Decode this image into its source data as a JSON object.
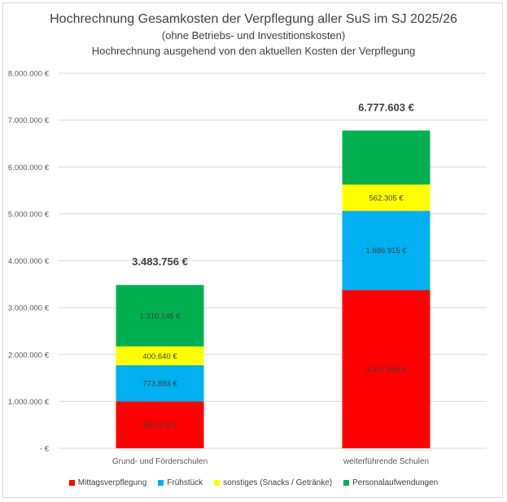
{
  "chart_data": {
    "type": "bar",
    "stacked": true,
    "title": "Hochrechnung Gesamkosten der Verpflegung aller SuS im SJ 2025/26",
    "subtitle": [
      "(ohne Betriebs- und Investitionskosten)",
      "Hochrechnung ausgehend von den aktuellen Kosten der Verpflegung"
    ],
    "categories": [
      "Grund- und Förderschulen",
      "weiterführende Schulen"
    ],
    "ylim": [
      0,
      8000000
    ],
    "yticks": [
      0,
      1000000,
      2000000,
      3000000,
      4000000,
      5000000,
      6000000,
      7000000,
      8000000
    ],
    "ytick_labels": [
      "-   €",
      "1.000.000 €",
      "2.000.000 €",
      "3.000.000 €",
      "4.000.000 €",
      "5.000.000 €",
      "6.000.000 €",
      "7.000.000 €",
      "8.000.000 €"
    ],
    "grid": true,
    "legend_position": "bottom",
    "series": [
      {
        "name": "Mittagsverpflegung",
        "color": "#ff0000",
        "values": [
          999078,
          3377836
        ],
        "labels": [
          "999.078 €",
          "3.377.836 €"
        ]
      },
      {
        "name": "Frühstück",
        "color": "#00b0f0",
        "values": [
          773893,
          1686915
        ],
        "labels": [
          "773.893 €",
          "1.686.915 €"
        ]
      },
      {
        "name": "sonstiges (Snacks / Getränke)",
        "color": "#ffff00",
        "values": [
          400640,
          562305
        ],
        "labels": [
          "400.640 €",
          "562.305 €"
        ]
      },
      {
        "name": "Personalaufwendungen",
        "color": "#00b050",
        "values": [
          1310145,
          1150547
        ],
        "labels": [
          "1.310.145 €",
          ""
        ]
      }
    ],
    "totals": [
      "3.483.756 €",
      "6.777.603 €"
    ]
  }
}
